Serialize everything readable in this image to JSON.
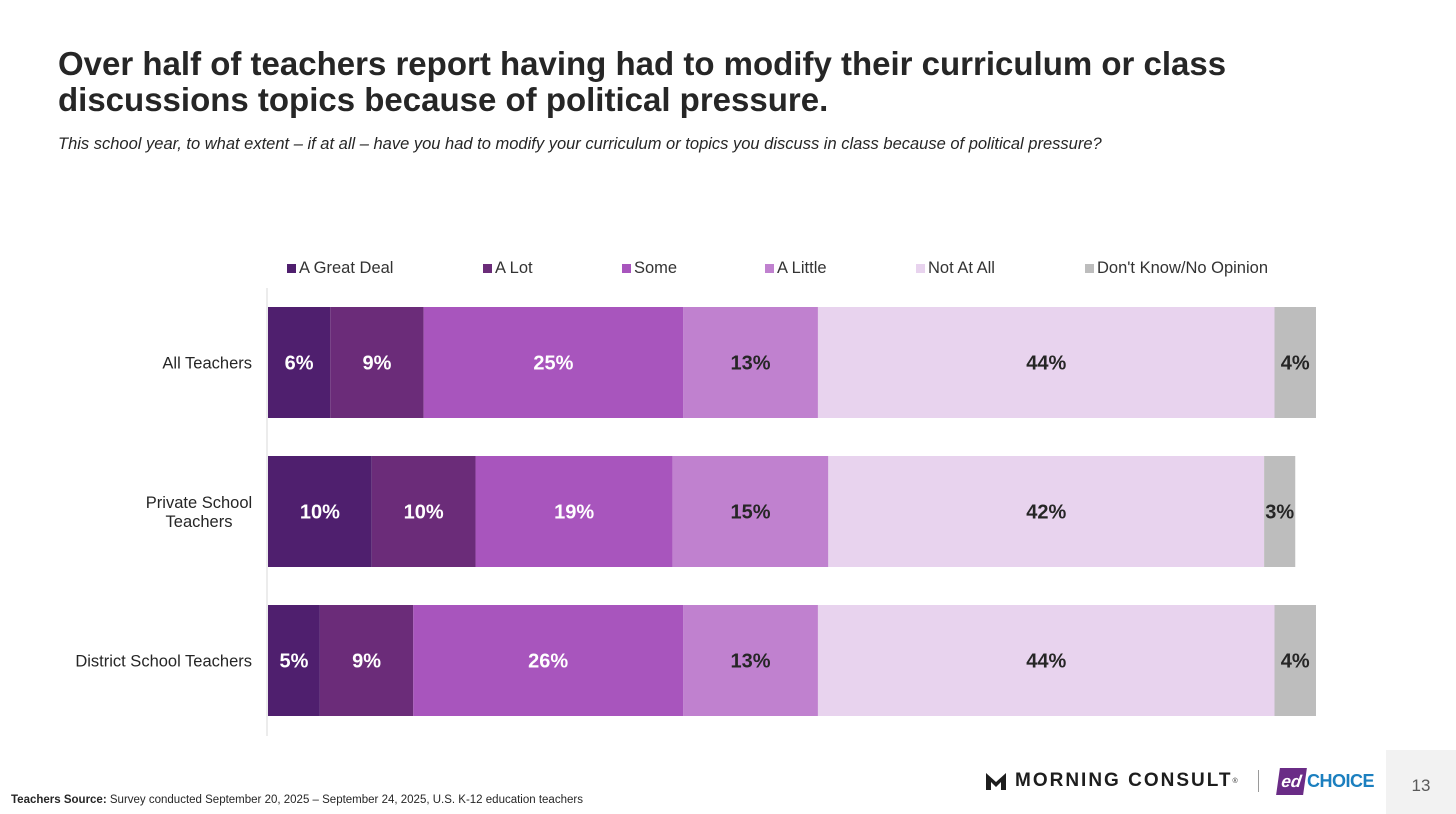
{
  "title": "Over half of teachers report having had to modify their curriculum or class discussions topics because of political pressure.",
  "subtitle": "This school year, to what extent – if at all – have you had to modify your curriculum or topics you discuss in class because of political pressure?",
  "chart_data": {
    "type": "bar",
    "orientation": "horizontal",
    "stacked": true,
    "categories": [
      "All Teachers",
      "Private School Teachers",
      "District School Teachers"
    ],
    "category_labels": [
      [
        "All Teachers"
      ],
      [
        "Private School",
        "Teachers"
      ],
      [
        "District School Teachers"
      ]
    ],
    "series": [
      {
        "name": "A Great Deal",
        "color": "#4f1f6e",
        "label_color": "#ffffff",
        "values": [
          6,
          10,
          5
        ]
      },
      {
        "name": "A Lot",
        "color": "#6b2c79",
        "label_color": "#ffffff",
        "values": [
          9,
          10,
          9
        ]
      },
      {
        "name": "Some",
        "color": "#a855bd",
        "label_color": "#ffffff",
        "values": [
          25,
          19,
          26
        ]
      },
      {
        "name": "A Little",
        "color": "#c081cf",
        "label_color": "#262626",
        "values": [
          13,
          15,
          13
        ]
      },
      {
        "name": "Not At All",
        "color": "#e8d3ee",
        "label_color": "#262626",
        "values": [
          44,
          42,
          44
        ]
      },
      {
        "name": "Don't Know/No Opinion",
        "color": "#bdbdbd",
        "label_color": "#262626",
        "values": [
          4,
          3,
          4
        ]
      }
    ],
    "value_suffix": "%",
    "xlim": [
      0,
      101
    ],
    "legend_position": "top",
    "grid": false
  },
  "footer": {
    "source_label": "Teachers Source:",
    "source_text": "Survey conducted September 20, 2025 – September 24, 2025, U.S. K-12 education teachers",
    "brand_morning_consult": "MORNING CONSULT",
    "brand_ed_mark": "ed",
    "brand_ed_choice": "CHOICE",
    "page_number": "13"
  }
}
